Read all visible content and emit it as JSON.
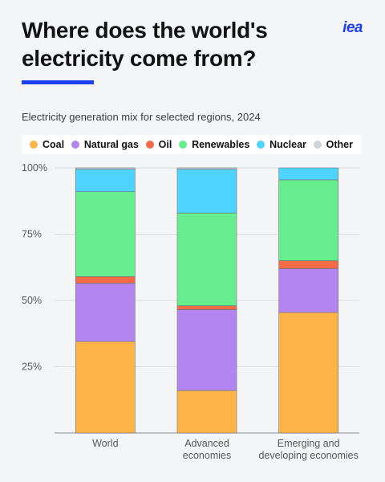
{
  "header": {
    "title_line1": "Where does the world's",
    "title_line2": "electricity come from?",
    "logo_text": "iea",
    "subtitle": "Electricity generation mix for selected regions, 2024"
  },
  "colors": {
    "logo": "#1e3ff0",
    "accent_bar": "#1e3ff0"
  },
  "chart_data": {
    "type": "bar",
    "stacked": true,
    "categories": [
      [
        "World"
      ],
      [
        "Advanced",
        "economies"
      ],
      [
        "Emerging and",
        "developing economies"
      ]
    ],
    "series": [
      {
        "name": "Coal",
        "color": "#fdb446",
        "values": [
          34.5,
          16,
          45.5
        ]
      },
      {
        "name": "Natural gas",
        "color": "#b385f0",
        "values": [
          22,
          30.5,
          16.5
        ]
      },
      {
        "name": "Oil",
        "color": "#f26b46",
        "values": [
          2.5,
          1.5,
          3
        ]
      },
      {
        "name": "Renewables",
        "color": "#66ee8e",
        "values": [
          32,
          35,
          30.5
        ]
      },
      {
        "name": "Nuclear",
        "color": "#4dd3fd",
        "values": [
          8.5,
          16.5,
          4.5
        ]
      },
      {
        "name": "Other",
        "color": "#cfd3da",
        "values": [
          0.5,
          0.5,
          0
        ]
      }
    ],
    "y_ticks": [
      "100%",
      "75%",
      "50%",
      "25%"
    ],
    "y_tick_values": [
      100,
      75,
      50,
      25
    ],
    "ylim": [
      0,
      100
    ],
    "grid": true,
    "legend_position": "top"
  }
}
